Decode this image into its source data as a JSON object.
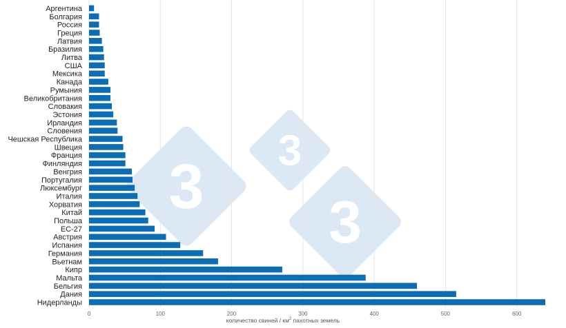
{
  "chart_data": {
    "type": "bar",
    "orientation": "horizontal",
    "categories": [
      "Аргентина",
      "Болгария",
      "Россия",
      "Греция",
      "Латвия",
      "Бразилия",
      "Литва",
      "США",
      "Мексика",
      "Канада",
      "Румыния",
      "Великобритания",
      "Словакия",
      "Эстония",
      "Ирландия",
      "Словения",
      "Чешская Республика",
      "Швеция",
      "Франция",
      "Финляндия",
      "Венгрия",
      "Португалия",
      "Люксембург",
      "Италия",
      "Хорватия",
      "Китай",
      "Польша",
      "ЕС-27",
      "Австрия",
      "Испания",
      "Германия",
      "Вьетнам",
      "Кипр",
      "Мальта",
      "Бельгия",
      "Дания",
      "Нидерланды"
    ],
    "values": [
      7,
      14,
      14,
      15,
      18,
      20,
      21,
      22,
      22,
      27,
      30,
      30,
      32,
      34,
      39,
      40,
      47,
      48,
      51,
      51,
      60,
      61,
      64,
      68,
      71,
      79,
      83,
      92,
      108,
      128,
      160,
      181,
      271,
      388,
      460,
      515,
      640
    ],
    "xlabel_main": "количество свиней / км",
    "xlabel_sup": "2",
    "xlabel_rest": " пахотных земель",
    "xlim": [
      0,
      640
    ],
    "xticks": [
      0,
      100,
      200,
      300,
      400,
      500,
      600
    ],
    "bar_color": "#0b6db3",
    "grid": true
  },
  "watermark": {
    "glyph": "3",
    "color": "#dce8f3"
  }
}
